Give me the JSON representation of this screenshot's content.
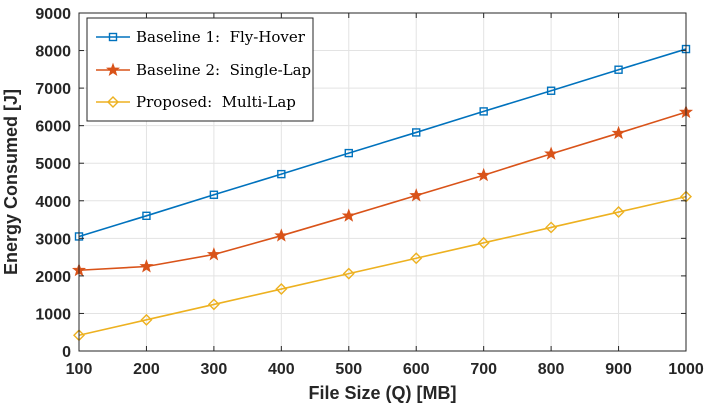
{
  "chart_data": {
    "type": "line",
    "title": "",
    "xlabel": "File Size (Q) [MB]",
    "ylabel": "Energy Consumed [J]",
    "x": [
      100,
      200,
      300,
      400,
      500,
      600,
      700,
      800,
      900,
      1000
    ],
    "xlim": [
      100,
      1000
    ],
    "ylim": [
      0,
      9000
    ],
    "xticks": [
      "100",
      "200",
      "300",
      "400",
      "500",
      "600",
      "700",
      "800",
      "900",
      "1000"
    ],
    "yticks": [
      "0",
      "1000",
      "2000",
      "3000",
      "4000",
      "5000",
      "6000",
      "7000",
      "8000",
      "9000"
    ],
    "grid": true,
    "legend_position": "top-left",
    "series": [
      {
        "name": "Baseline 1:  Fly-Hover",
        "marker": "square",
        "color": "#0072BD",
        "values": [
          3050,
          3600,
          4160,
          4710,
          5270,
          5820,
          6380,
          6930,
          7490,
          8040
        ]
      },
      {
        "name": "Baseline 2:  Single-Lap",
        "marker": "star",
        "color": "#D95319",
        "values": [
          2150,
          2250,
          2570,
          3070,
          3600,
          4140,
          4680,
          5250,
          5800,
          6360
        ]
      },
      {
        "name": "Proposed:  Multi-Lap",
        "marker": "diamond",
        "color": "#EDB120",
        "values": [
          420,
          830,
          1240,
          1650,
          2060,
          2470,
          2880,
          3290,
          3700,
          4110
        ]
      }
    ]
  }
}
